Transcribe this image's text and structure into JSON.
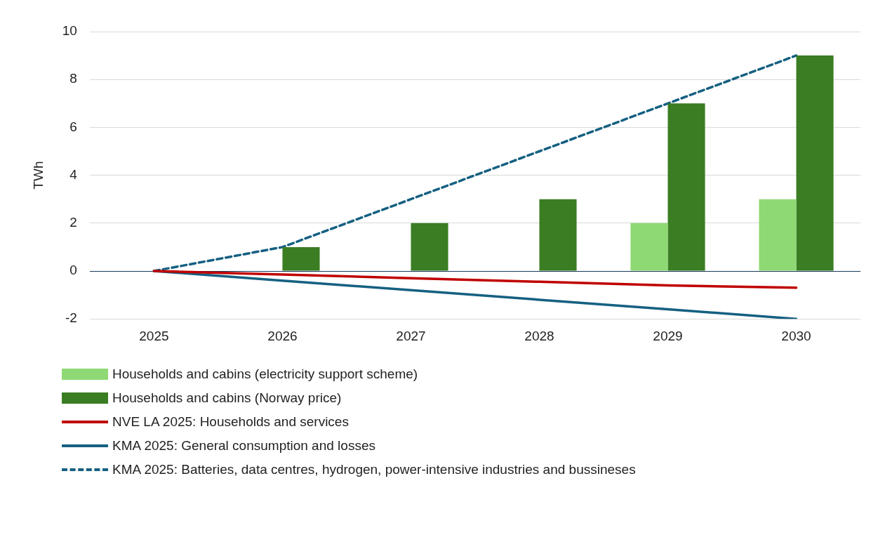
{
  "chart_data": {
    "type": "bar",
    "ylabel": "TWh",
    "categories": [
      "2025",
      "2026",
      "2027",
      "2028",
      "2029",
      "2030"
    ],
    "ylim": [
      -2,
      10
    ],
    "yticks": [
      -2,
      0,
      2,
      4,
      6,
      8,
      10
    ],
    "grid": "y",
    "legend": "bottom",
    "series": [
      {
        "name": "Households and cabins (electricity support scheme)",
        "color": "#8ed973",
        "values": [
          null,
          null,
          null,
          null,
          2,
          3
        ]
      },
      {
        "name": "Households and cabins (Norway price)",
        "color": "#3a7d22",
        "values": [
          null,
          1,
          2,
          3,
          7,
          9
        ]
      },
      {
        "type": "line",
        "name": "NVE LA 2025: Households and services",
        "color": "#c00000",
        "line_style": "solid",
        "values": [
          0,
          -0.15,
          -0.3,
          -0.45,
          -0.6,
          -0.7
        ]
      },
      {
        "type": "line",
        "name": "KMA 2025: General consumption and losses",
        "color": "#156082",
        "line_style": "solid",
        "values": [
          0,
          -0.4,
          -0.8,
          -1.2,
          -1.6,
          -2
        ]
      },
      {
        "type": "line",
        "name": "KMA 2025: Batteries, data centres, hydrogen, power-intensive industries and bussineses",
        "color": "#156082",
        "line_style": "dashed",
        "values": [
          0,
          1,
          3,
          5,
          7,
          9
        ]
      }
    ]
  }
}
